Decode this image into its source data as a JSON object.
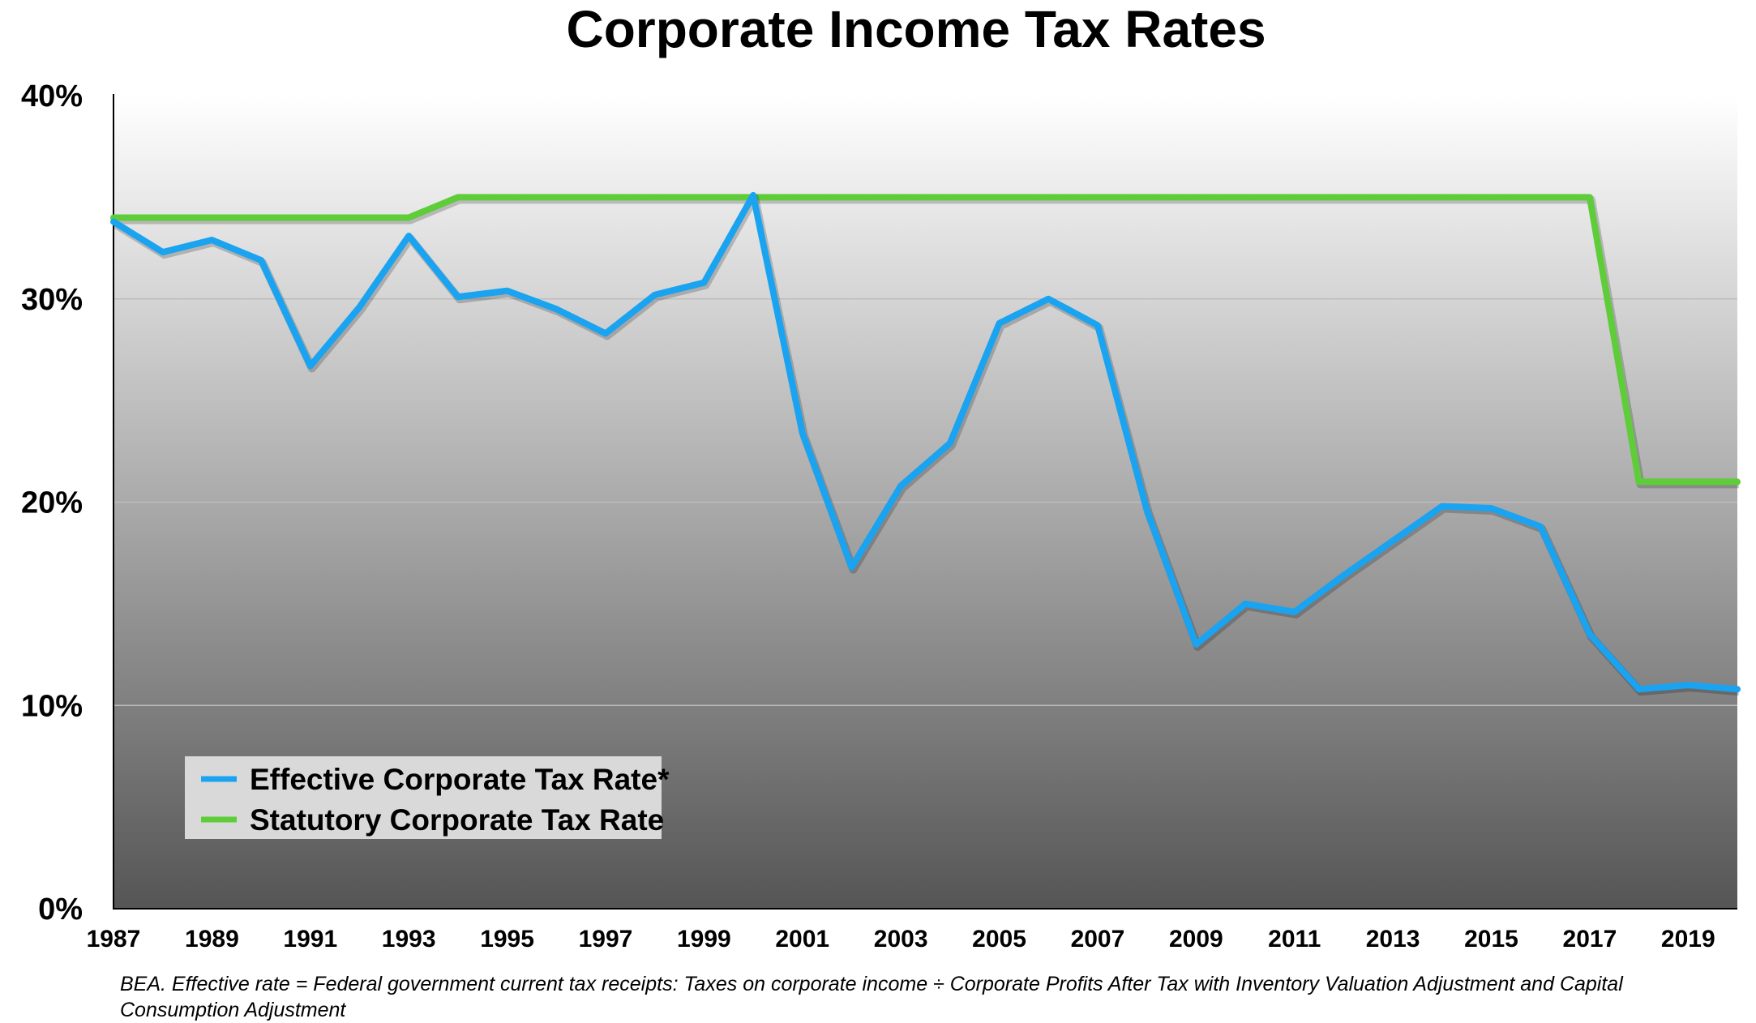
{
  "chart_data": {
    "type": "line",
    "title": "Corporate Income Tax Rates",
    "x": [
      1987,
      1988,
      1989,
      1990,
      1991,
      1992,
      1993,
      1994,
      1995,
      1996,
      1997,
      1998,
      1999,
      2000,
      2001,
      2002,
      2003,
      2004,
      2005,
      2006,
      2007,
      2008,
      2009,
      2010,
      2011,
      2012,
      2013,
      2014,
      2015,
      2016,
      2017,
      2018,
      2019,
      2020
    ],
    "x_tick_labels": [
      "1987",
      "1989",
      "1991",
      "1993",
      "1995",
      "1997",
      "1999",
      "2001",
      "2003",
      "2005",
      "2007",
      "2009",
      "2011",
      "2013",
      "2015",
      "2017",
      "2019"
    ],
    "y_tick_labels": [
      "0%",
      "10%",
      "20%",
      "30%",
      "40%"
    ],
    "ylim": [
      0,
      40
    ],
    "y_unit": "%",
    "grid": true,
    "legend_position": "bottom-left",
    "series": [
      {
        "name": "Effective Corporate Tax Rate*",
        "color": "#1aa3f0",
        "values": [
          33.8,
          32.3,
          32.9,
          31.9,
          26.7,
          29.6,
          33.1,
          30.1,
          30.4,
          29.5,
          28.3,
          30.2,
          30.8,
          35.1,
          23.4,
          16.8,
          20.8,
          22.9,
          28.8,
          30.0,
          28.7,
          19.6,
          13.0,
          15.0,
          14.6,
          16.4,
          18.1,
          19.8,
          19.7,
          18.8,
          13.5,
          10.8,
          11.0,
          10.8
        ]
      },
      {
        "name": "Statutory Corporate Tax Rate",
        "color": "#5fcc3a",
        "values": [
          34,
          34,
          34,
          34,
          34,
          34,
          34,
          35,
          35,
          35,
          35,
          35,
          35,
          35,
          35,
          35,
          35,
          35,
          35,
          35,
          35,
          35,
          35,
          35,
          35,
          35,
          35,
          35,
          35,
          35,
          35,
          21,
          21,
          21
        ]
      }
    ]
  },
  "footnote": "BEA. Effective rate = Federal government current tax receipts: Taxes on corporate income ÷ Corporate Profits After Tax with Inventory Valuation Adjustment and Capital Consumption Adjustment"
}
